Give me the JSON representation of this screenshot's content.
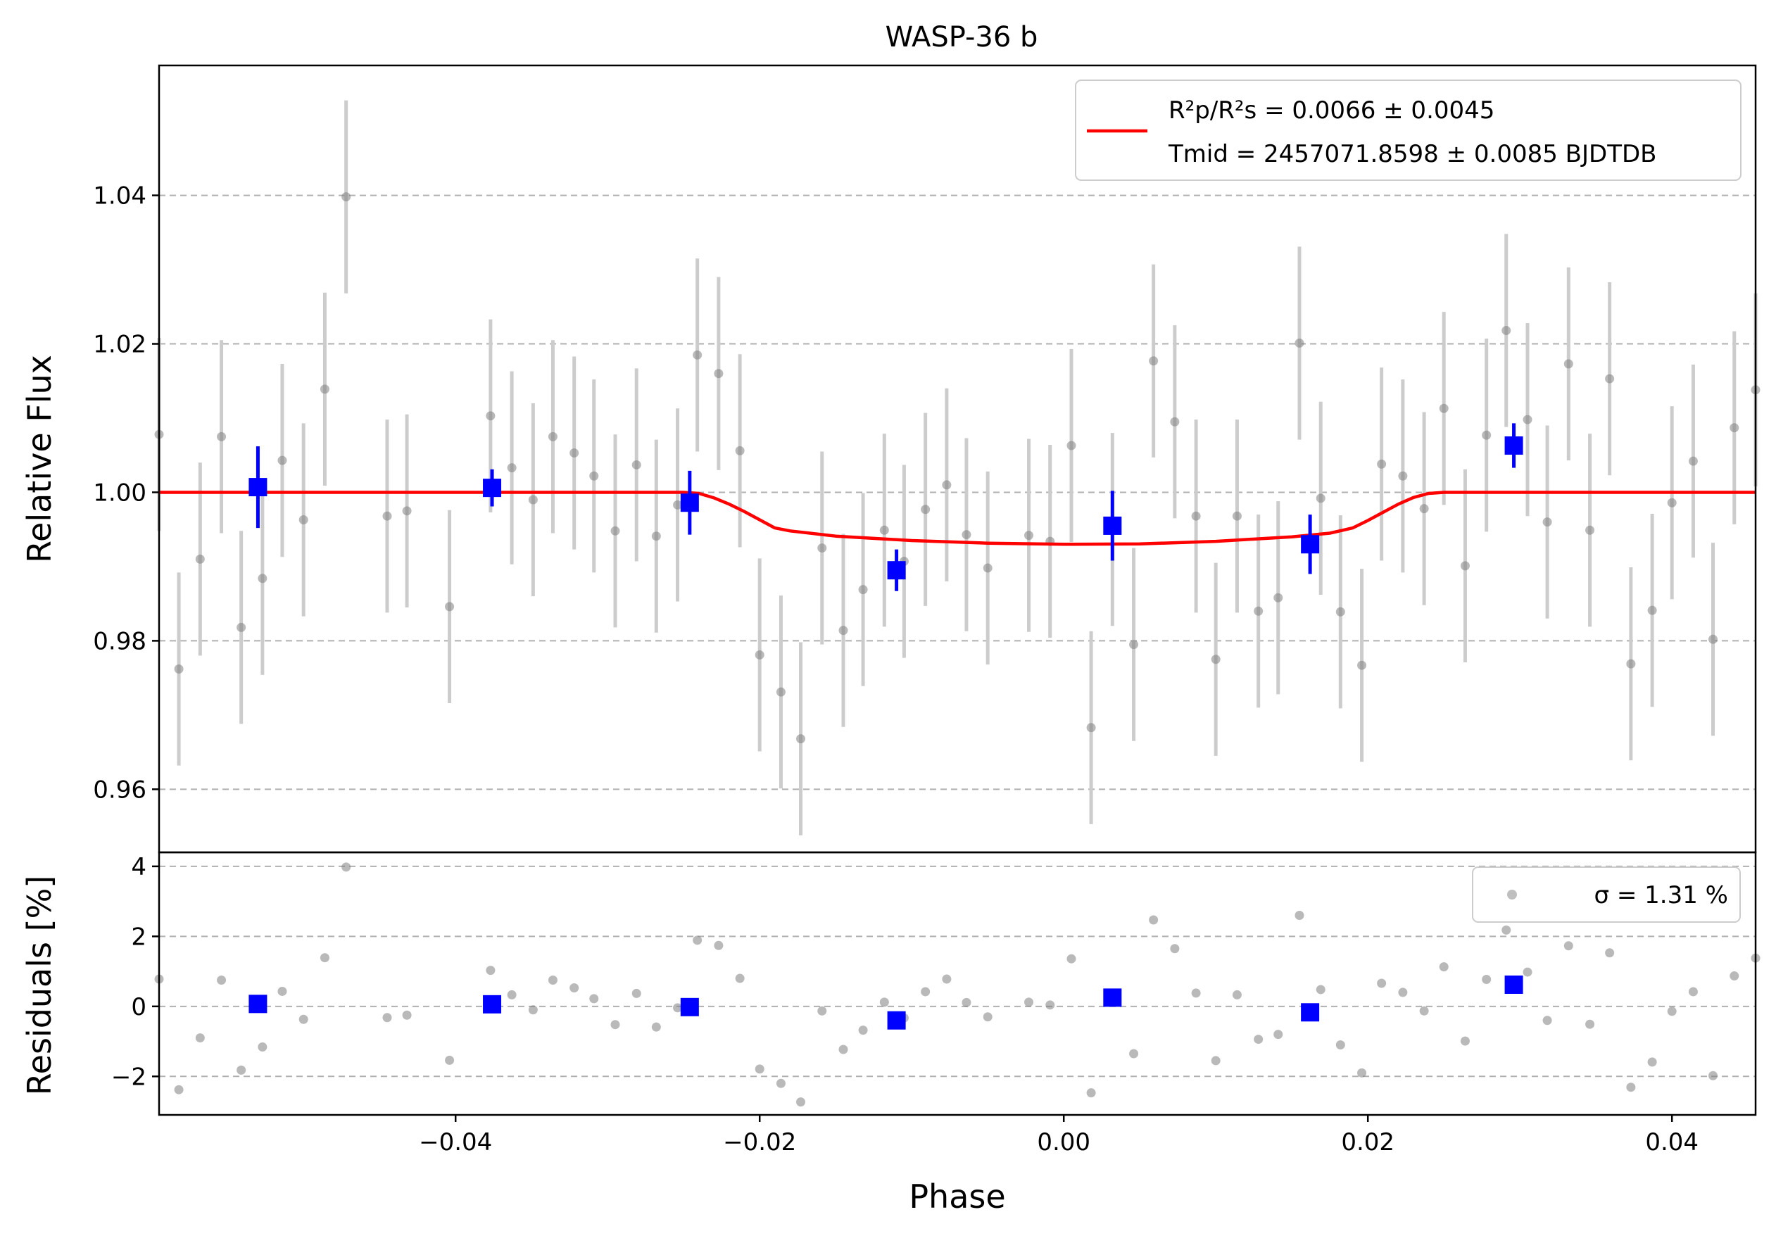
{
  "chart_data": {
    "type": "scatter",
    "title": "WASP-36 b",
    "colors": {
      "raw": "#808080",
      "binned": "#0000ff",
      "model": "#ff0000",
      "grid": "#b0b0b0"
    },
    "top_panel": {
      "ylabel": "Relative Flux",
      "xlim": [
        -0.0595,
        0.0455
      ],
      "ylim": [
        0.9515,
        1.0575
      ],
      "yticks": [
        0.96,
        0.98,
        1.0,
        1.02,
        1.04
      ],
      "ytick_labels": [
        "0.96",
        "0.98",
        "1.00",
        "1.02",
        "1.04"
      ],
      "legend": {
        "location": "upper right",
        "line1": "R²p/R²s = 0.0066 ± 0.0045",
        "line2": "Tmid = 2457071.8598 ± 0.0085 BJDTDB"
      },
      "series": [
        {
          "name": "model",
          "kind": "line",
          "x": [
            -0.0595,
            -0.025,
            -0.024,
            -0.023,
            -0.022,
            -0.021,
            -0.02,
            -0.019,
            -0.018,
            -0.015,
            -0.01,
            -0.005,
            0.0,
            0.005,
            0.01,
            0.015,
            0.0175,
            0.019,
            0.02,
            0.021,
            0.022,
            0.023,
            0.024,
            0.025,
            0.0455
          ],
          "y": [
            1.0,
            1.0,
            0.99985,
            0.99925,
            0.9984,
            0.9974,
            0.9963,
            0.9952,
            0.9948,
            0.9941,
            0.9935,
            0.99315,
            0.993,
            0.99305,
            0.9934,
            0.994,
            0.9945,
            0.9952,
            0.9962,
            0.9973,
            0.9984,
            0.9993,
            0.99985,
            1.0,
            1.0
          ]
        },
        {
          "name": "raw",
          "kind": "errorbar",
          "x": [
            -0.0595,
            -0.0582,
            -0.0568,
            -0.0554,
            -0.0541,
            -0.0527,
            -0.0514,
            -0.05,
            -0.0486,
            -0.0472,
            -0.0445,
            -0.0432,
            -0.0404,
            -0.0377,
            -0.0363,
            -0.0349,
            -0.0336,
            -0.0322,
            -0.0309,
            -0.0295,
            -0.0281,
            -0.0268,
            -0.0254,
            -0.0241,
            -0.0227,
            -0.0213,
            -0.02,
            -0.0186,
            -0.0173,
            -0.0159,
            -0.0145,
            -0.0132,
            -0.0118,
            -0.0105,
            -0.0091,
            -0.0077,
            -0.0064,
            -0.005,
            -0.0023,
            -0.0009,
            0.0005,
            0.0018,
            0.0032,
            0.0046,
            0.0059,
            0.0073,
            0.0087,
            0.01,
            0.0114,
            0.0128,
            0.0141,
            0.0155,
            0.0169,
            0.0182,
            0.0196,
            0.0209,
            0.0223,
            0.0237,
            0.025,
            0.0264,
            0.0278,
            0.0291,
            0.0305,
            0.0318,
            0.0332,
            0.0346,
            0.0359,
            0.0373,
            0.0387,
            0.04,
            0.0414,
            0.0427,
            0.0441,
            0.0455
          ],
          "y": [
            1.0078,
            0.9762,
            0.991,
            1.0075,
            0.9818,
            0.9884,
            1.0043,
            0.9963,
            1.0139,
            1.0398,
            0.9968,
            0.9975,
            0.9846,
            1.0103,
            1.0033,
            0.999,
            1.0075,
            1.0053,
            1.0022,
            0.9948,
            1.0037,
            0.9941,
            0.9983,
            1.0185,
            1.016,
            1.0056,
            0.9781,
            0.9731,
            0.9668,
            0.9925,
            0.9814,
            0.9869,
            0.9949,
            0.9907,
            0.9977,
            1.001,
            0.9943,
            0.9898,
            0.9942,
            0.9934,
            1.0063,
            0.9683,
            0.995,
            0.9795,
            1.0177,
            1.0095,
            0.9968,
            0.9775,
            0.9968,
            0.984,
            0.9858,
            1.0201,
            0.9992,
            0.9839,
            0.9767,
            1.0038,
            1.0022,
            0.9978,
            1.0113,
            0.9901,
            1.0077,
            1.0218,
            1.0098,
            0.996,
            1.0173,
            0.9949,
            1.0153,
            0.9769,
            0.9841,
            0.9986,
            1.0042,
            0.9802,
            1.0087,
            1.0138
          ],
          "err": 0.013
        },
        {
          "name": "binned",
          "kind": "errorbar",
          "x": [
            -0.053,
            -0.0376,
            -0.0246,
            -0.011,
            0.0032,
            0.0162,
            0.0296
          ],
          "y": [
            1.0007,
            1.0006,
            0.9986,
            0.9895,
            0.9955,
            0.993,
            1.0063
          ],
          "err": [
            0.0055,
            0.0025,
            0.0043,
            0.0028,
            0.0047,
            0.004,
            0.003
          ]
        }
      ]
    },
    "bottom_panel": {
      "ylabel": "Residuals [%]",
      "xlabel": "Phase",
      "xlim": [
        -0.0595,
        0.0455
      ],
      "ylim": [
        -3.1,
        4.4
      ],
      "yticks": [
        -2,
        0,
        2,
        4
      ],
      "ytick_labels": [
        "−2",
        "0",
        "2",
        "4"
      ],
      "xticks": [
        -0.04,
        -0.02,
        0.0,
        0.02,
        0.04
      ],
      "xtick_labels": [
        "−0.04",
        "−0.02",
        "0.00",
        "0.02",
        "0.04"
      ],
      "legend": {
        "location": "upper right",
        "label": "σ = 1.31 %"
      },
      "series": [
        {
          "name": "raw",
          "kind": "scatter",
          "x": [
            -0.0595,
            -0.0582,
            -0.0568,
            -0.0554,
            -0.0541,
            -0.0527,
            -0.0514,
            -0.05,
            -0.0486,
            -0.0472,
            -0.0445,
            -0.0432,
            -0.0404,
            -0.0377,
            -0.0363,
            -0.0349,
            -0.0336,
            -0.0322,
            -0.0309,
            -0.0295,
            -0.0281,
            -0.0268,
            -0.0254,
            -0.0241,
            -0.0227,
            -0.0213,
            -0.02,
            -0.0186,
            -0.0173,
            -0.0159,
            -0.0145,
            -0.0132,
            -0.0118,
            -0.0105,
            -0.0091,
            -0.0077,
            -0.0064,
            -0.005,
            -0.0023,
            -0.0009,
            0.0005,
            0.0018,
            0.0032,
            0.0046,
            0.0059,
            0.0073,
            0.0087,
            0.01,
            0.0114,
            0.0128,
            0.0141,
            0.0155,
            0.0169,
            0.0182,
            0.0196,
            0.0209,
            0.0223,
            0.0237,
            0.025,
            0.0264,
            0.0278,
            0.0291,
            0.0305,
            0.0318,
            0.0332,
            0.0346,
            0.0359,
            0.0373,
            0.0387,
            0.04,
            0.0414,
            0.0427,
            0.0441,
            0.0455
          ],
          "y": [
            0.78,
            -2.38,
            -0.9,
            0.75,
            -1.82,
            -1.16,
            0.43,
            -0.37,
            1.39,
            3.98,
            -0.32,
            -0.25,
            -1.54,
            1.03,
            0.33,
            -0.1,
            0.75,
            0.53,
            0.22,
            -0.52,
            0.37,
            -0.59,
            -0.04,
            1.89,
            1.74,
            0.8,
            -1.79,
            -2.2,
            -2.73,
            -0.13,
            -1.23,
            -0.68,
            0.12,
            -0.33,
            0.42,
            0.78,
            0.11,
            -0.3,
            0.12,
            0.04,
            1.36,
            -2.47,
            0.22,
            -1.35,
            2.47,
            1.65,
            0.38,
            -1.55,
            0.33,
            -0.94,
            -0.8,
            2.6,
            0.48,
            -1.1,
            -1.9,
            0.66,
            0.4,
            -0.13,
            1.13,
            -0.99,
            0.77,
            2.18,
            0.98,
            -0.4,
            1.73,
            -0.51,
            1.53,
            -2.31,
            -1.59,
            -0.14,
            0.42,
            -1.98,
            0.87,
            1.38
          ]
        },
        {
          "name": "binned",
          "kind": "scatter",
          "x": [
            -0.053,
            -0.0376,
            -0.0246,
            -0.011,
            0.0032,
            0.0162,
            0.0296
          ],
          "y": [
            0.07,
            0.06,
            -0.02,
            -0.4,
            0.25,
            -0.17,
            0.62
          ]
        }
      ]
    }
  }
}
